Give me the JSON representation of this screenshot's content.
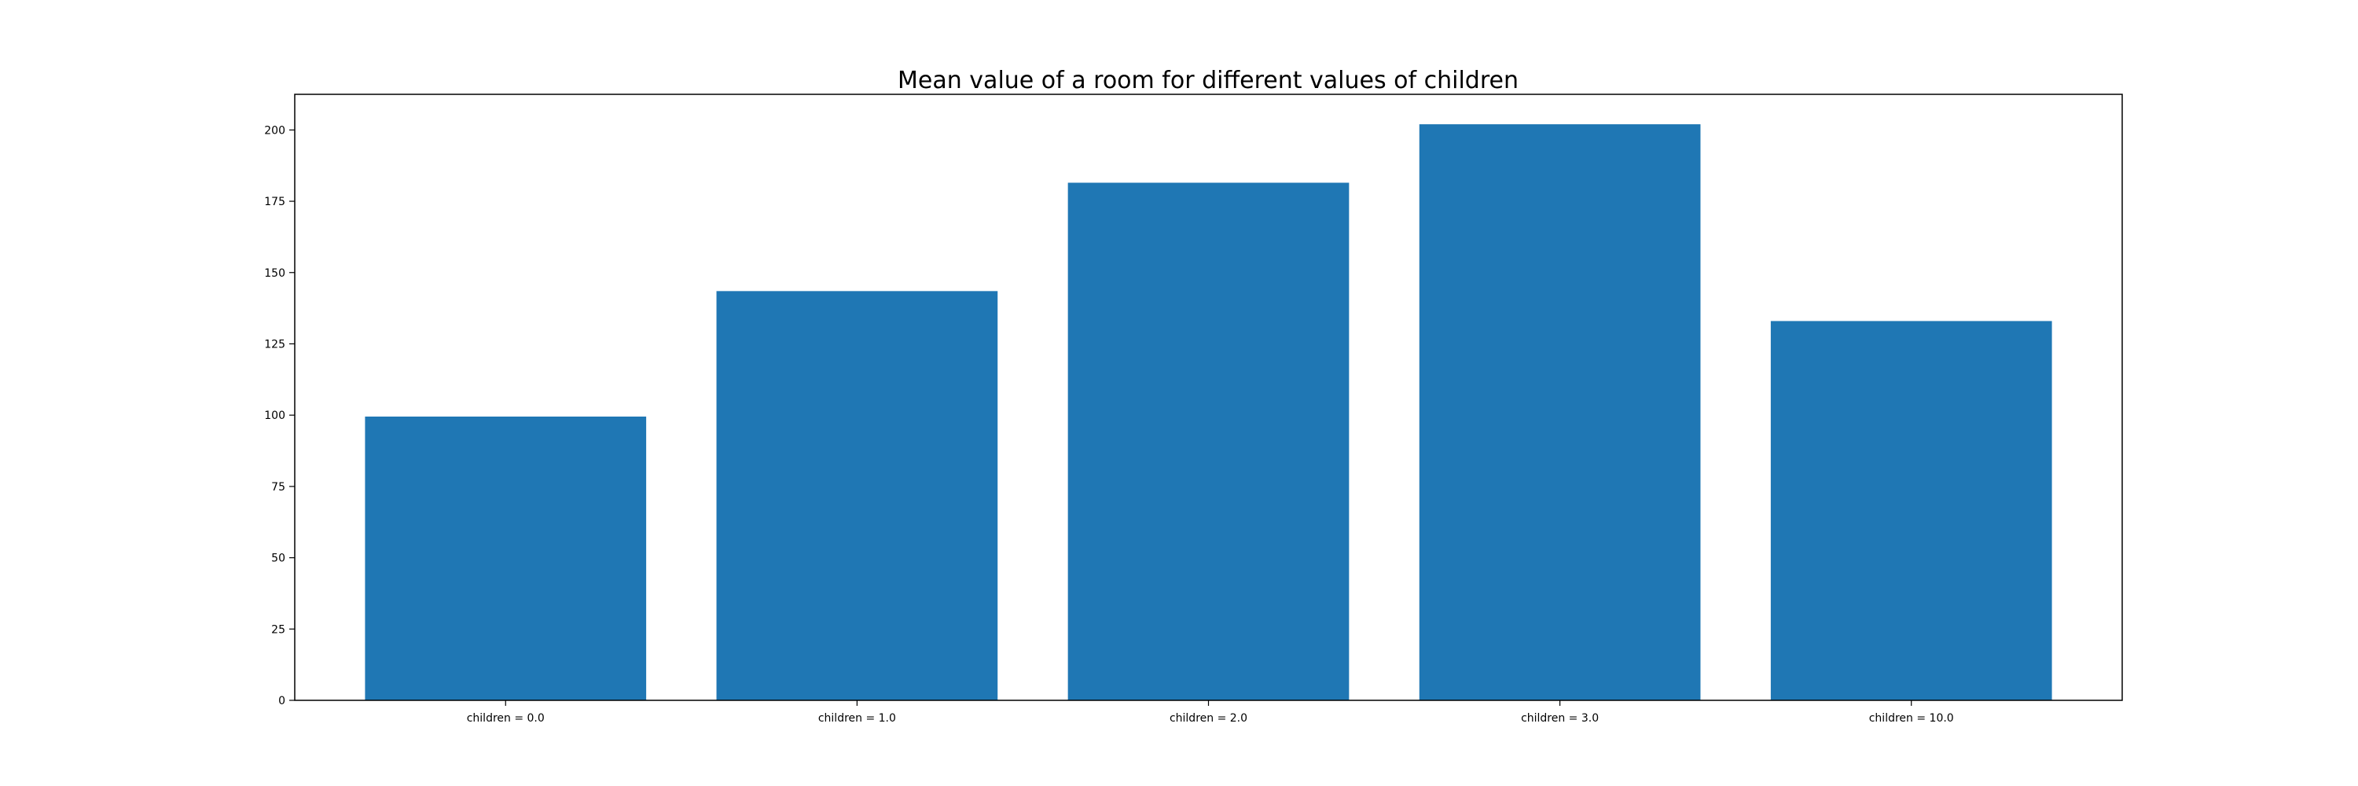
{
  "chart_data": {
    "type": "bar",
    "title": "Mean value of a room for different values of children",
    "xlabel": "",
    "ylabel": "",
    "categories": [
      "children = 0.0",
      "children = 1.0",
      "children = 2.0",
      "children = 3.0",
      "children = 10.0"
    ],
    "values": [
      99.5,
      143.5,
      181.5,
      202,
      133
    ],
    "ylim": [
      0,
      212.5
    ],
    "yticks": [
      0,
      25,
      50,
      75,
      100,
      125,
      150,
      175,
      200
    ],
    "grid": false,
    "legend": "none",
    "bar_color": "#1f77b4"
  }
}
